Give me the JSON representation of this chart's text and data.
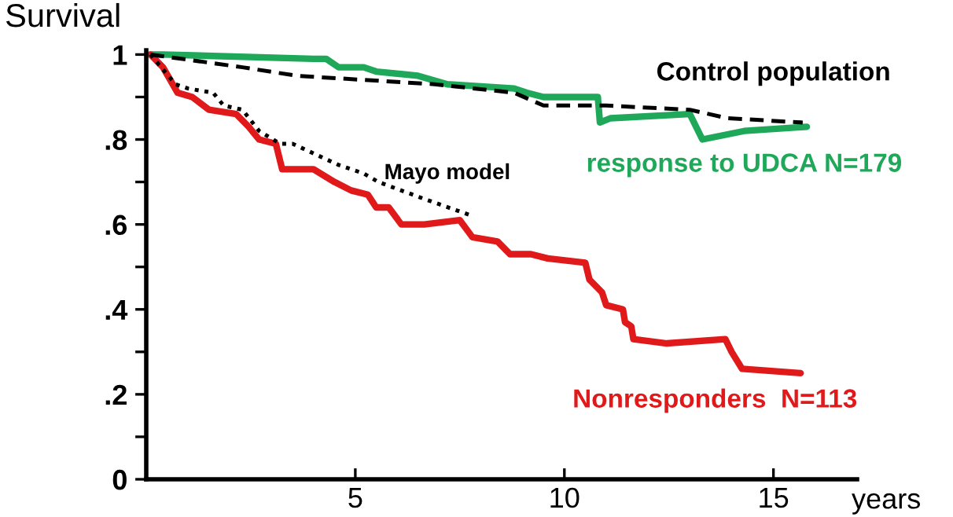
{
  "chart_data": {
    "type": "line",
    "ylabel": "Survival",
    "xlabel": "years",
    "xlim": [
      0,
      17
    ],
    "ylim": [
      0,
      1.01
    ],
    "xticks": [
      5,
      10,
      15
    ],
    "yticks": [
      0,
      {
        "value": 0.1,
        "label": null
      },
      {
        "value": 0.2,
        "label": ".2"
      },
      {
        "value": 0.3,
        "label": null
      },
      {
        "value": 0.4,
        "label": ".4"
      },
      {
        "value": 0.5,
        "label": null
      },
      {
        "value": 0.6,
        "label": ".6"
      },
      {
        "value": 0.7,
        "label": null
      },
      {
        "value": 0.8,
        "label": ".8"
      },
      {
        "value": 0.9,
        "label": null
      },
      1
    ],
    "grid": false,
    "legend": false,
    "marker": "none",
    "series": [
      {
        "name": "Control population",
        "color": "#000000",
        "line_style": "dashed",
        "x": [
          0.1,
          2.3,
          3.6,
          6.9,
          8.8,
          9.5,
          11.0,
          13.0,
          13.9,
          15.7
        ],
        "values": [
          1.0,
          0.97,
          0.95,
          0.93,
          0.91,
          0.88,
          0.88,
          0.87,
          0.85,
          0.84
        ]
      },
      {
        "name": "response to UDCA N=179",
        "color": "#1fa85a",
        "line_style": "solid",
        "x": [
          0.1,
          0.4,
          4.0,
          4.3,
          4.6,
          5.2,
          5.5,
          6.5,
          7.2,
          8.8,
          9.1,
          9.5,
          10.4,
          10.8,
          10.85,
          11.1,
          13.0,
          13.3,
          14.3,
          15.8
        ],
        "values": [
          1.0,
          1.0,
          0.99,
          0.99,
          0.97,
          0.97,
          0.96,
          0.95,
          0.93,
          0.92,
          0.91,
          0.9,
          0.9,
          0.9,
          0.84,
          0.85,
          0.86,
          0.8,
          0.82,
          0.83
        ]
      },
      {
        "name": "Mayo model",
        "color": "#000000",
        "line_style": "dotted",
        "x": [
          0.1,
          0.7,
          1.0,
          1.6,
          1.85,
          2.3,
          2.7,
          3.2,
          3.5,
          4.6,
          5.2,
          5.55,
          6.65,
          7.8
        ],
        "values": [
          1.0,
          0.93,
          0.92,
          0.91,
          0.88,
          0.87,
          0.82,
          0.79,
          0.79,
          0.74,
          0.72,
          0.7,
          0.66,
          0.62
        ]
      },
      {
        "name": "Nonresponders  N=113",
        "color": "#e0191b",
        "line_style": "solid",
        "x": [
          0.1,
          0.4,
          0.75,
          1.1,
          1.5,
          2.15,
          2.45,
          2.7,
          3.1,
          3.25,
          4.0,
          4.5,
          4.9,
          5.3,
          5.5,
          5.8,
          6.1,
          6.65,
          7.5,
          7.8,
          8.4,
          8.7,
          9.2,
          9.6,
          10.5,
          10.6,
          10.9,
          11.0,
          11.4,
          11.45,
          11.6,
          11.65,
          12.45,
          13.85,
          14.0,
          14.25,
          15.65
        ],
        "values": [
          1.0,
          0.97,
          0.91,
          0.9,
          0.87,
          0.86,
          0.83,
          0.8,
          0.79,
          0.73,
          0.73,
          0.7,
          0.68,
          0.67,
          0.64,
          0.64,
          0.6,
          0.6,
          0.61,
          0.57,
          0.56,
          0.53,
          0.53,
          0.52,
          0.51,
          0.47,
          0.44,
          0.41,
          0.4,
          0.37,
          0.36,
          0.33,
          0.32,
          0.33,
          0.3,
          0.26,
          0.25
        ]
      }
    ]
  }
}
